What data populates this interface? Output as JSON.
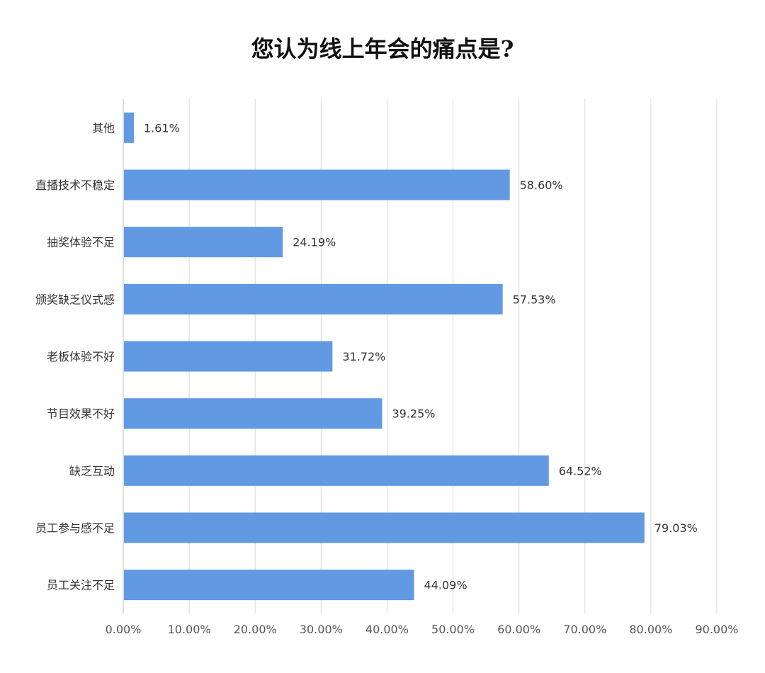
{
  "chart_data": {
    "type": "bar",
    "orientation": "horizontal",
    "title": "您认为线上年会的痛点是?",
    "categories": [
      "其他",
      "直播技术不稳定",
      "抽奖体验不足",
      "颁奖缺乏仪式感",
      "老板体验不好",
      "节目效果不好",
      "缺乏互动",
      "员工参与感不足",
      "员工关注不足"
    ],
    "values": [
      1.61,
      58.6,
      24.19,
      57.53,
      31.72,
      39.25,
      64.52,
      79.03,
      44.09
    ],
    "value_labels": [
      "1.61%",
      "58.60%",
      "24.19%",
      "57.53%",
      "31.72%",
      "39.25%",
      "64.52%",
      "79.03%",
      "44.09%"
    ],
    "x_ticks": [
      0,
      10,
      20,
      30,
      40,
      50,
      60,
      70,
      80,
      90
    ],
    "x_tick_labels": [
      "0.00%",
      "10.00%",
      "20.00%",
      "30.00%",
      "40.00%",
      "50.00%",
      "60.00%",
      "70.00%",
      "80.00%",
      "90.00%"
    ],
    "xlim": [
      0,
      90
    ],
    "grid": true,
    "legend": "none",
    "bar_color": "#6199E3",
    "grid_color": "#D9D9D9"
  }
}
